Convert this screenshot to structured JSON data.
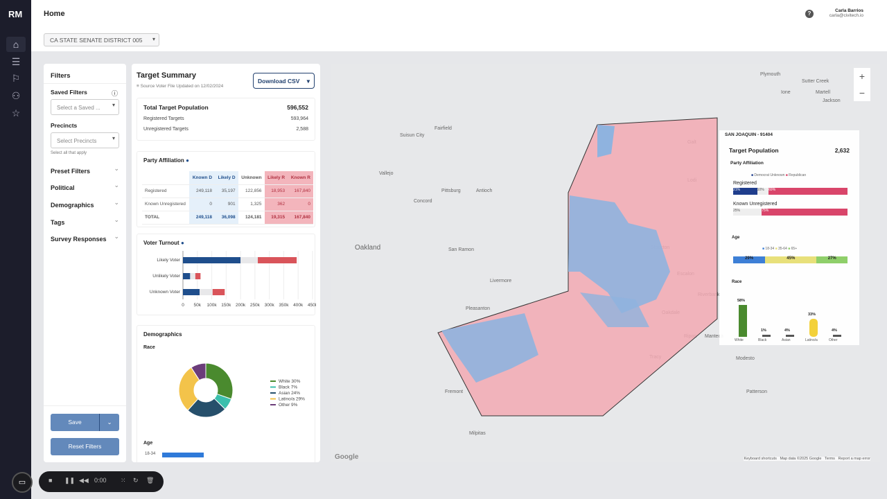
{
  "app": {
    "logo": "RM",
    "page_title": "Home",
    "district": "CA STATE SENATE DISTRICT 005",
    "user_name": "Carla Barrios",
    "user_email": "carla@civitech.io",
    "help": "?"
  },
  "nav": [
    "home-icon",
    "database-icon",
    "flag-icon",
    "users-search-icon",
    "star-icon"
  ],
  "filters": {
    "title": "Filters",
    "saved_label": "Saved Filters",
    "saved_placeholder": "Select a Saved ...",
    "precincts_label": "Precincts",
    "precincts_placeholder": "Select Precincts",
    "precincts_hint": "Select all that apply",
    "sections": [
      "Preset Filters",
      "Political",
      "Demographics",
      "Tags",
      "Survey Responses"
    ],
    "save": "Save",
    "reset": "Reset Filters"
  },
  "summary": {
    "title": "Target Summary",
    "source": "Source Voter File Updated on 12/02/2024",
    "download": "Download CSV",
    "total_label": "Total Target Population",
    "total": "596,552",
    "registered_label": "Registered Targets",
    "registered": "593,964",
    "unregistered_label": "Unregistered Targets",
    "unregistered": "2,588"
  },
  "party": {
    "title": "Party Affiliation",
    "headers": [
      "",
      "Known D",
      "Likely D",
      "Unknown",
      "Likely R",
      "Known R"
    ],
    "rows": [
      [
        "Registered",
        "249,118",
        "35,197",
        "122,856",
        "18,953",
        "167,840"
      ],
      [
        "Known Unregistered",
        "0",
        "901",
        "1,325",
        "362",
        "0"
      ],
      [
        "TOTAL",
        "249,118",
        "36,098",
        "124,181",
        "19,315",
        "167,840"
      ]
    ]
  },
  "chart_data": [
    {
      "type": "bar",
      "title": "Voter Turnout",
      "categories": [
        "Likely Voter",
        "Unlikely Voter",
        "Unknown Voter"
      ],
      "series": [
        {
          "name": "Democrat",
          "color": "#1f4e8c",
          "values": [
            200000,
            25000,
            58000
          ]
        },
        {
          "name": "Unknown",
          "color": "#e8e8ea",
          "values": [
            60000,
            18000,
            45000
          ]
        },
        {
          "name": "Republican",
          "color": "#d9545a",
          "values": [
            135000,
            18000,
            42000
          ]
        }
      ],
      "xticks": [
        "0",
        "50k",
        "100k",
        "150k",
        "200k",
        "250k",
        "300k",
        "350k",
        "400k",
        "450k"
      ],
      "xlim": [
        0,
        450000
      ]
    },
    {
      "type": "pie",
      "title": "Race",
      "labels": [
        "White 30%",
        "Black 7%",
        "Asian 24%",
        "Latino/a 29%",
        "Other 9%"
      ],
      "values": [
        30,
        7,
        24,
        29,
        9
      ],
      "colors": [
        "#4a8a2e",
        "#3bbfad",
        "#264f6b",
        "#f3c34a",
        "#6b3d7a"
      ]
    },
    {
      "type": "bar",
      "title": "Age",
      "categories": [
        "18-34"
      ],
      "values": [
        1
      ]
    }
  ],
  "demographics": {
    "title": "Demographics"
  },
  "map": {
    "labels": [
      "Sutter Creek",
      "Martell",
      "Jackson",
      "Ione",
      "Plymouth",
      "Galt",
      "Lodi",
      "Stockton",
      "Fairfield",
      "Suisun City",
      "Vallejo",
      "Antioch",
      "Pittsburg",
      "Concord",
      "Oakland",
      "San Ramon",
      "Livermore",
      "Pleasanton",
      "Tracy",
      "Manteca",
      "Modesto",
      "Fremont",
      "Milpitas",
      "Patterson",
      "Oakdale",
      "Riverbank",
      "Escalon",
      "Ripon"
    ],
    "zoom_in": "+",
    "zoom_out": "−",
    "footer": [
      "Keyboard shortcuts",
      "Map data ©2025 Google",
      "Terms",
      "Report a map error"
    ],
    "google": "Google"
  },
  "popup": {
    "precinct": "SAN JOAQUIN - 91404",
    "target_label": "Target Population",
    "target": "2,632",
    "party_label": "Party Affiliation",
    "legend": [
      "Democrat",
      "Unknown",
      "Republican"
    ],
    "registered": "Registered",
    "registered_vals": [
      "21%",
      "10%",
      "69%"
    ],
    "unreg": "Known Unregistered",
    "unreg_vals": [
      "25%",
      "75%"
    ],
    "age_label": "Age",
    "age_legend": [
      "18-34",
      "35-64",
      "65+"
    ],
    "age_vals": [
      "29%",
      "45%",
      "27%"
    ],
    "race_label": "Race",
    "race": [
      {
        "name": "White",
        "pct": "58%",
        "v": 58,
        "c": "#4a8a2e"
      },
      {
        "name": "Black",
        "pct": "1%",
        "v": 1,
        "c": "#555"
      },
      {
        "name": "Asian",
        "pct": "4%",
        "v": 4,
        "c": "#555"
      },
      {
        "name": "Latino/a",
        "pct": "33%",
        "v": 33,
        "c": "#f3d13a"
      },
      {
        "name": "Other",
        "pct": "4%",
        "v": 4,
        "c": "#555"
      }
    ]
  },
  "recorder": {
    "time": "0:00"
  }
}
